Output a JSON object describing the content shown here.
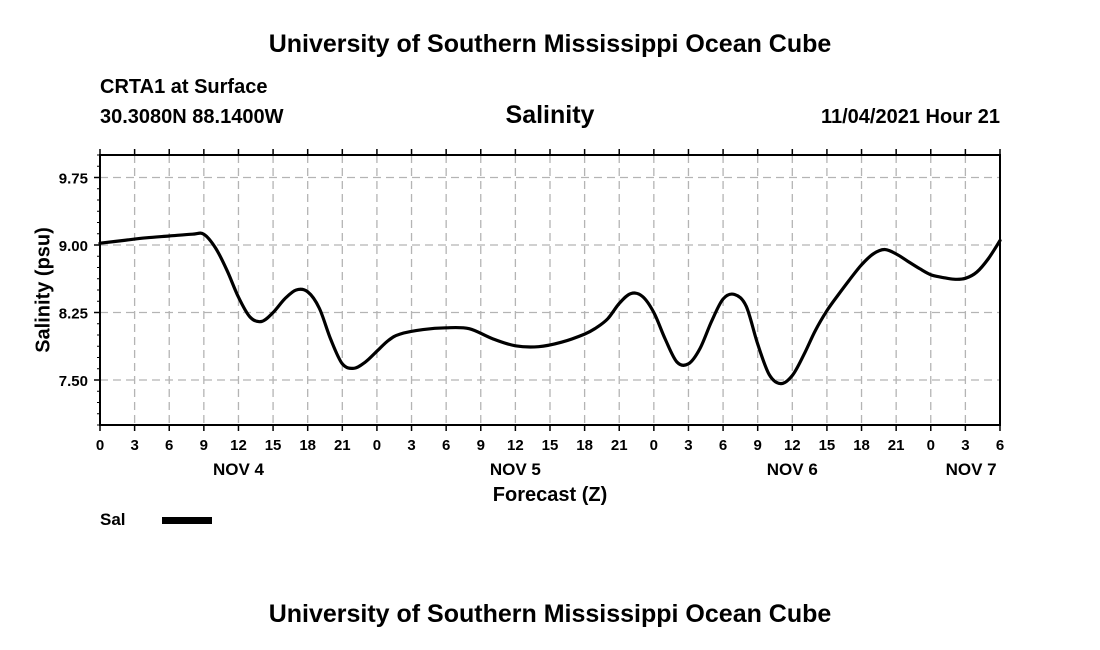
{
  "header": {
    "title": "University of Southern Mississippi Ocean Cube",
    "station": "CRTA1 at Surface",
    "location": "30.3080N  88.1400W",
    "variable": "Salinity",
    "datetime": "11/04/2021 Hour 21"
  },
  "footer": {
    "title": "University of Southern Mississippi Ocean Cube"
  },
  "legend": {
    "label": "Sal",
    "color": "#000000"
  },
  "chart_data": {
    "type": "line",
    "title": "Salinity",
    "xlabel": "Forecast (Z)",
    "ylabel": "Salinity (psu)",
    "x_unit": "forecast hours from Nov 4 00Z",
    "xlim": [
      0,
      78
    ],
    "ylim": [
      7.0,
      10.0
    ],
    "yticks": [
      7.5,
      8.25,
      9.0,
      9.75
    ],
    "ytick_labels": [
      "7.50",
      "8.25",
      "9.00",
      "9.75"
    ],
    "xticks": [
      0,
      3,
      6,
      9,
      12,
      15,
      18,
      21,
      24,
      27,
      30,
      33,
      36,
      39,
      42,
      45,
      48,
      51,
      54,
      57,
      60,
      63,
      66,
      69,
      72,
      75,
      78
    ],
    "xtick_labels": [
      "0",
      "3",
      "6",
      "9",
      "12",
      "15",
      "18",
      "21",
      "0",
      "3",
      "6",
      "9",
      "12",
      "15",
      "18",
      "21",
      "0",
      "3",
      "6",
      "9",
      "12",
      "15",
      "18",
      "21",
      "0",
      "3",
      "6"
    ],
    "day_labels": [
      {
        "x": 12,
        "label": "NOV 4"
      },
      {
        "x": 36,
        "label": "NOV 5"
      },
      {
        "x": 60,
        "label": "NOV 6"
      },
      {
        "x": 75.5,
        "label": "NOV 7"
      }
    ],
    "grid": true,
    "legend_position": "bottom-left",
    "series": [
      {
        "name": "Sal",
        "color": "#000000",
        "x": [
          0,
          2,
          4,
          6,
          8,
          9,
          10,
          11,
          12,
          13,
          14,
          15,
          16,
          17,
          18,
          19,
          20,
          21,
          22,
          23,
          24,
          25,
          26,
          28,
          30,
          32,
          34,
          36,
          38,
          40,
          42,
          43,
          44,
          45,
          46,
          47,
          48,
          49,
          50,
          51,
          52,
          53,
          54,
          55,
          56,
          57,
          58,
          59,
          60,
          61,
          62,
          63,
          64,
          65,
          66,
          67,
          68,
          69,
          70,
          71,
          72,
          73,
          74,
          75,
          76,
          77,
          78
        ],
        "values": [
          9.02,
          9.05,
          9.08,
          9.1,
          9.12,
          9.12,
          8.97,
          8.72,
          8.42,
          8.2,
          8.15,
          8.25,
          8.4,
          8.5,
          8.48,
          8.3,
          7.95,
          7.68,
          7.63,
          7.7,
          7.82,
          7.94,
          8.01,
          8.06,
          8.08,
          8.07,
          7.96,
          7.88,
          7.87,
          7.92,
          8.01,
          8.08,
          8.18,
          8.35,
          8.46,
          8.43,
          8.25,
          7.95,
          7.7,
          7.68,
          7.85,
          8.15,
          8.4,
          8.45,
          8.32,
          7.9,
          7.56,
          7.46,
          7.55,
          7.78,
          8.05,
          8.27,
          8.45,
          8.62,
          8.78,
          8.9,
          8.95,
          8.9,
          8.82,
          8.74,
          8.67,
          8.64,
          8.62,
          8.63,
          8.7,
          8.85,
          9.05
        ]
      }
    ]
  }
}
